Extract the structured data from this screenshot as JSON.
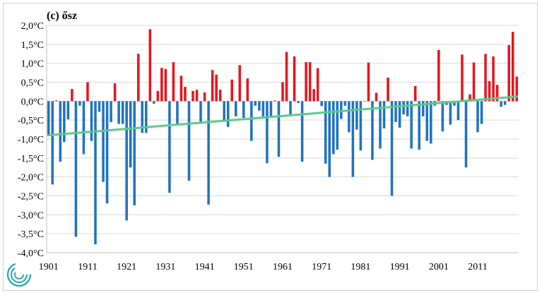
{
  "chart_data": {
    "type": "bar",
    "title": "(c) ősz",
    "xlabel": "",
    "ylabel": "",
    "ylim": [
      -4.0,
      2.0
    ],
    "y_ticks": [
      "2,0°C",
      "1,5°C",
      "1,0°C",
      "0,5°C",
      "0,0°C",
      "-0,5°C",
      "-1,0°C",
      "-1,5°C",
      "-2,0°C",
      "-2,5°C",
      "-3,0°C",
      "-3,5°C",
      "-4,0°C"
    ],
    "x_ticks": [
      "1901",
      "1911",
      "1921",
      "1931",
      "1941",
      "1951",
      "1961",
      "1971",
      "1981",
      "1991",
      "2001",
      "2011"
    ],
    "x_start": 1901,
    "x_end": 2020,
    "grid": "horizontal",
    "colors": {
      "positive": "#e8141c",
      "negative": "#1f73c0",
      "trend": "#5fc98a",
      "grid": "#d9d9d9"
    },
    "series": [
      {
        "values": [
          -0.92,
          -2.2,
          0.02,
          -1.6,
          -1.08,
          -0.48,
          0.32,
          -3.58,
          -0.12,
          -1.4,
          0.5,
          -1.05,
          -3.78,
          -0.28,
          -2.13,
          -2.7,
          -0.55,
          0.47,
          -0.6,
          -0.6,
          -3.15,
          -1.75,
          -2.75,
          1.25,
          -0.84,
          -0.84,
          1.9,
          -0.07,
          0.27,
          0.88,
          0.85,
          -2.42,
          1.03,
          -0.6,
          0.67,
          0.38,
          -2.1,
          0.27,
          0.3,
          -0.6,
          0.23,
          -2.73,
          0.82,
          0.7,
          0.3,
          -0.5,
          -0.68,
          0.57,
          -0.4,
          0.95,
          -0.44,
          0.6,
          -1.05,
          -0.12,
          -0.25,
          -0.4,
          -1.64,
          -0.44,
          0.02,
          -1.47,
          0.5,
          1.3,
          -0.4,
          1.18,
          -0.05,
          -1.6,
          1.03,
          1.03,
          0.32,
          0.87,
          -0.13,
          -1.65,
          -2.0,
          -1.4,
          -1.28,
          -0.47,
          -0.12,
          -0.82,
          -2.0,
          -0.75,
          -1.3,
          0.0,
          1.02,
          -1.55,
          0.22,
          -1.25,
          -0.72,
          0.62,
          -2.5,
          -0.55,
          -0.7,
          -0.35,
          -0.4,
          -1.25,
          0.4,
          -1.28,
          -0.4,
          -1.05,
          -1.12,
          -0.12,
          1.35,
          -0.8,
          -0.1,
          -0.62,
          -0.12,
          -0.5,
          1.23,
          -1.75,
          0.18,
          1.02,
          -0.82,
          -0.6,
          1.25,
          0.53,
          1.18,
          0.43,
          -0.15,
          -0.1,
          1.48,
          1.83,
          0.65
        ]
      }
    ],
    "trend": {
      "start": -0.9,
      "end": 0.12
    }
  }
}
